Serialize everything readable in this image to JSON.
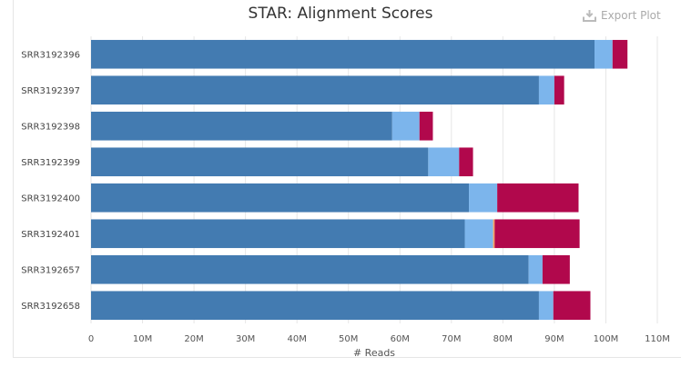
{
  "toolbar": {
    "export_label": "Export Plot",
    "export_icon": "download-icon"
  },
  "chart_data": {
    "type": "bar",
    "orientation": "horizontal",
    "stacked": true,
    "title": "STAR: Alignment Scores",
    "xlabel": "# Reads",
    "ylabel": "",
    "xlim": [
      0,
      110000000
    ],
    "x_ticks": [
      "0",
      "10M",
      "20M",
      "30M",
      "40M",
      "50M",
      "60M",
      "70M",
      "80M",
      "90M",
      "100M",
      "110M"
    ],
    "categories": [
      "SRR3192396",
      "SRR3192397",
      "SRR3192398",
      "SRR3192399",
      "SRR3192400",
      "SRR3192401",
      "SRR3192657",
      "SRR3192658"
    ],
    "series": [
      {
        "color": "#437bb1",
        "values": [
          97800000,
          87000000,
          58500000,
          65500000,
          73400000,
          72600000,
          85000000,
          87000000
        ]
      },
      {
        "color": "#7cb5ec",
        "values": [
          3500000,
          3000000,
          5300000,
          6000000,
          5500000,
          5500000,
          2700000,
          2800000
        ]
      },
      {
        "color": "#f7a35c",
        "values": [
          0,
          0,
          0,
          0,
          0,
          300000,
          0,
          0
        ]
      },
      {
        "color": "#b1084c",
        "values": [
          2900000,
          1900000,
          2600000,
          2700000,
          15800000,
          16500000,
          5300000,
          7200000
        ]
      }
    ],
    "grid": true,
    "legend": "none"
  }
}
